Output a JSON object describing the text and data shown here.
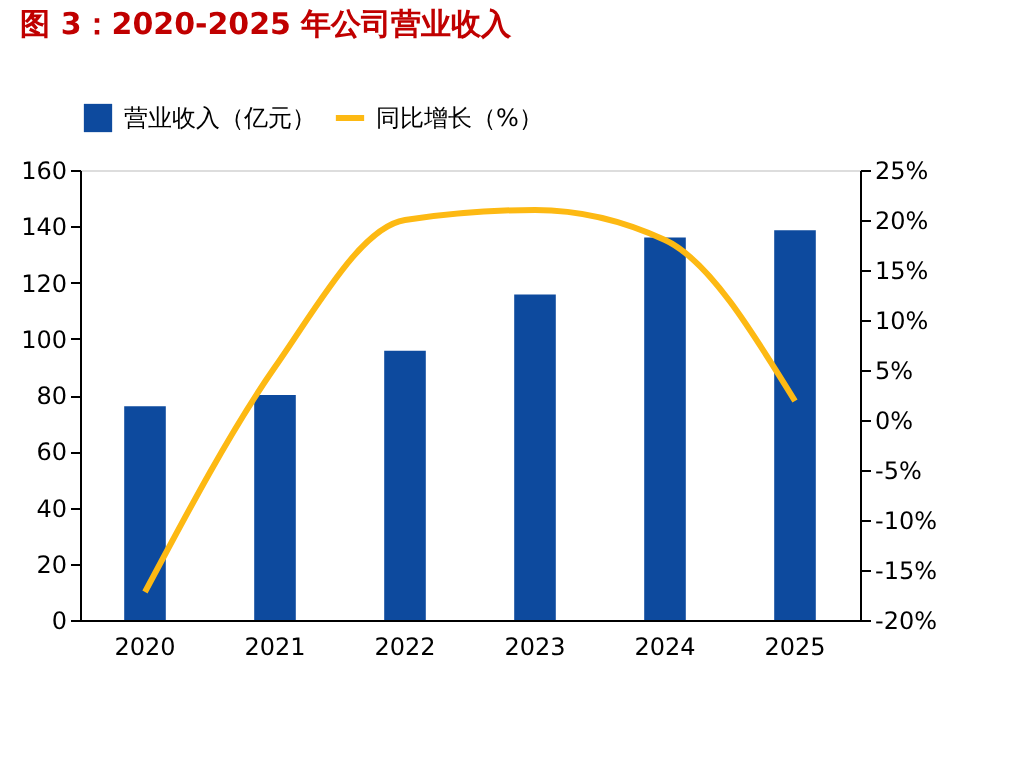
{
  "chart_data": {
    "type": "bar",
    "title": "图 3：2020-2025 年公司营业收入",
    "categories": [
      "2020",
      "2021",
      "2022",
      "2023",
      "2024",
      "2025"
    ],
    "series": [
      {
        "name": "营业收入（亿元）",
        "color": "#0d4a9e",
        "values": [
          76,
          80,
          95.7,
          115.7,
          136,
          138.6
        ]
      },
      {
        "name": "同比增长（%）",
        "type": "line",
        "axis": "y2",
        "color": "#fdb913",
        "values": [
          -17.2,
          5.3,
          20,
          21,
          18,
          1.9
        ]
      }
    ],
    "ylim": [
      0,
      160
    ],
    "yticks": [
      0,
      20,
      40,
      60,
      80,
      100,
      120,
      140,
      160
    ],
    "y2lim": [
      -20,
      25
    ],
    "y2ticks": [
      {
        "value": -20,
        "label": "-20%"
      },
      {
        "value": -15,
        "label": "-15%"
      },
      {
        "value": -10,
        "label": "-10%"
      },
      {
        "value": -5,
        "label": "-5%"
      },
      {
        "value": 0,
        "label": "0%"
      },
      {
        "value": 5,
        "label": "5%"
      },
      {
        "value": 10,
        "label": "10%"
      },
      {
        "value": 15,
        "label": "15%"
      },
      {
        "value": 20,
        "label": "20%"
      },
      {
        "value": 25,
        "label": "25%"
      }
    ],
    "grid": false,
    "legend": "top"
  }
}
